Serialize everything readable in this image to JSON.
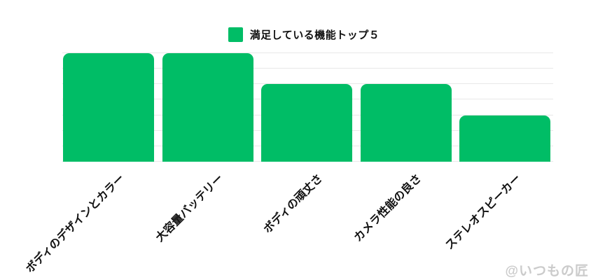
{
  "watermark": "@いつもの匠",
  "colors": {
    "bar": "#00BD66",
    "gridline": "#e8e8e8",
    "label_text": "#111111",
    "watermark_text": "#cbcbcb",
    "background": "#ffffff"
  },
  "chart_data": {
    "type": "bar",
    "title": "",
    "legend": "満足している機能トップ５",
    "legend_position": "top-center",
    "categories": [
      "ボディのデザインとカラー",
      "大容量バッテリー",
      "ボディの頑丈さ",
      "カメラ性能の良さ",
      "ステレオスピーカー"
    ],
    "values": [
      7,
      7,
      5,
      5,
      3
    ],
    "xlabel": "",
    "ylabel": "",
    "ylim": [
      0,
      7
    ],
    "gridline_interval": 1,
    "grid": "horizontal-only",
    "y_axis_labels_visible": false,
    "x_label_rotation_deg": 45,
    "bar_corner_radius": "rounded-top"
  }
}
